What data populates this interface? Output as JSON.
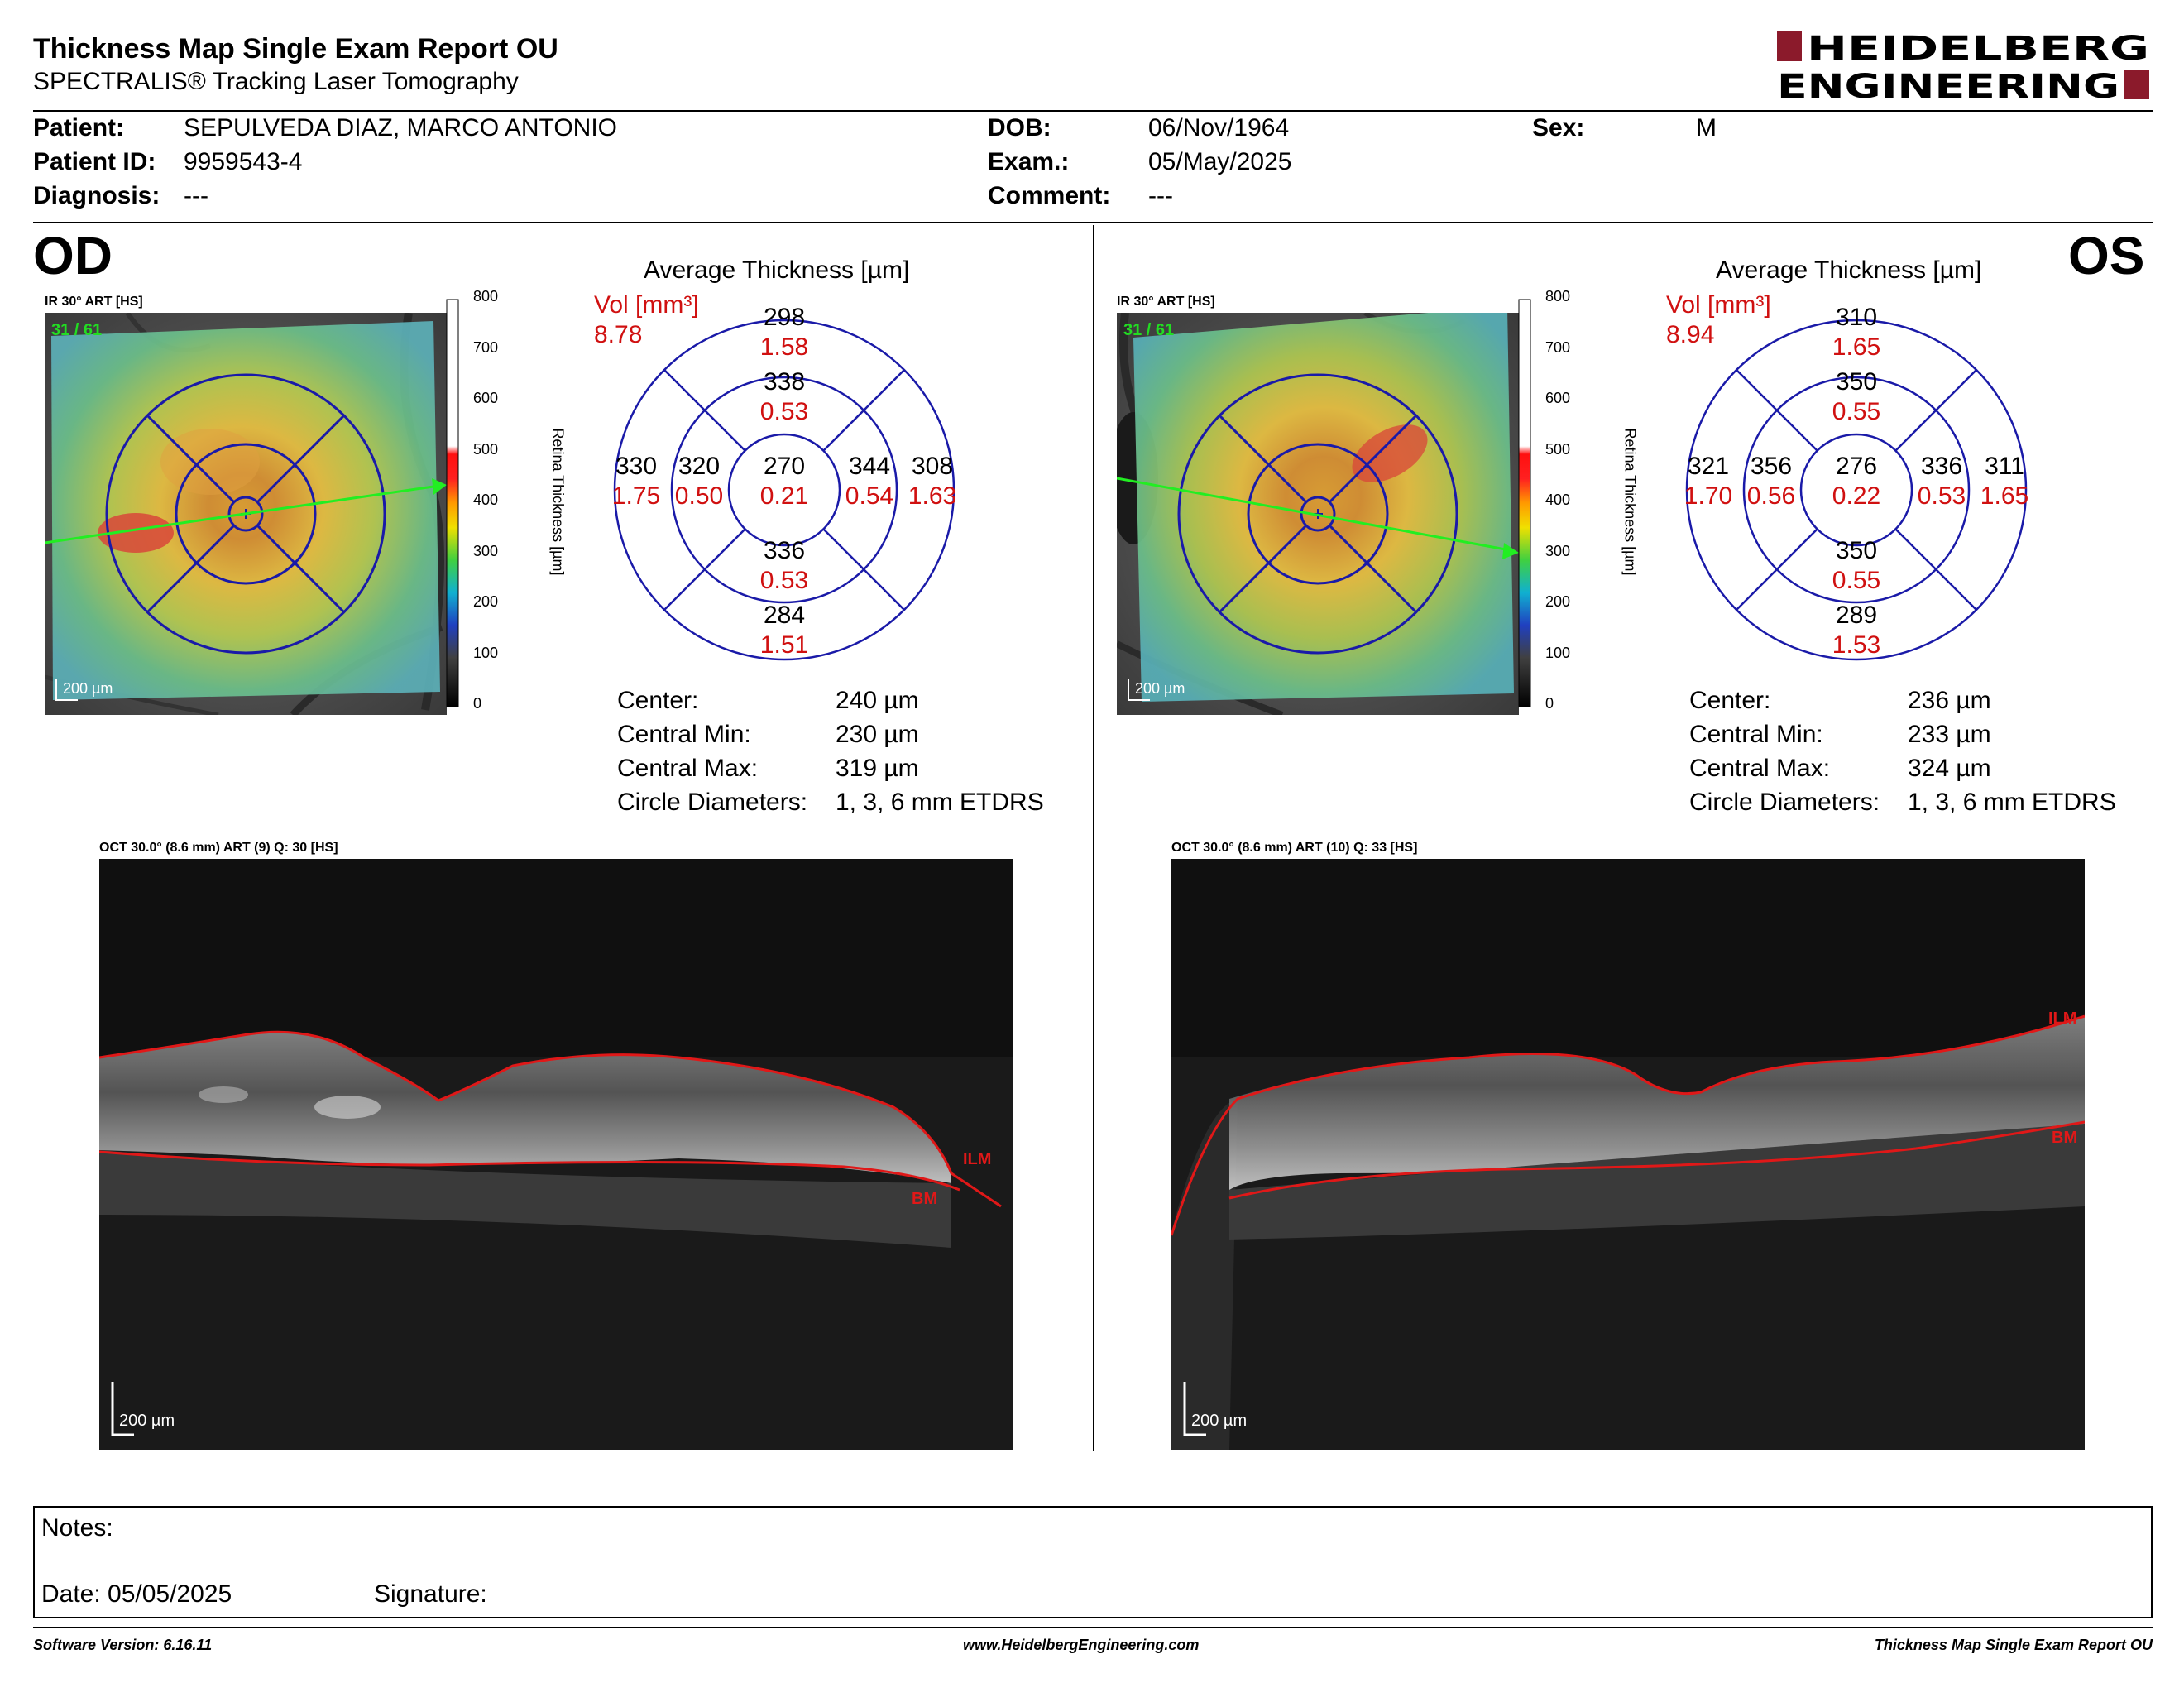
{
  "header": {
    "title": "Thickness Map Single Exam Report OU",
    "subtitle": "SPECTRALIS® Tracking Laser Tomography",
    "logo_line1": "HEIDELBERG",
    "logo_line2": "ENGINEERING"
  },
  "patient": {
    "patient_label": "Patient:",
    "patient_value": "SEPULVEDA DIAZ, MARCO ANTONIO",
    "id_label": "Patient ID:",
    "id_value": "9959543-4",
    "diagnosis_label": "Diagnosis:",
    "diagnosis_value": "---",
    "dob_label": "DOB:",
    "dob_value": "06/Nov/1964",
    "exam_label": "Exam.:",
    "exam_value": "05/May/2025",
    "comment_label": "Comment:",
    "comment_value": "---",
    "sex_label": "Sex:",
    "sex_value": "M"
  },
  "colors": {
    "sector_line": "#1a1aa8",
    "volume_text": "#d01010",
    "boundary_line": "#e01818",
    "tracking_green": "#22dd22"
  },
  "scale": {
    "ticks": [
      "800",
      "700",
      "600",
      "500",
      "400",
      "300",
      "200",
      "100",
      "0"
    ],
    "label": "Retina Thickness [µm]"
  },
  "od": {
    "eye": "OD",
    "ir_label": "IR 30° ART [HS]",
    "ir_frames": "31 / 61",
    "scale_bar": "200 µm",
    "avg_title": "Average Thickness [µm]",
    "vol_label": "Vol [mm³]",
    "vol_total": "8.78",
    "sectors": {
      "outer_sup": {
        "t": "298",
        "v": "1.58"
      },
      "inner_sup": {
        "t": "338",
        "v": "0.53"
      },
      "outer_left": {
        "t": "330",
        "v": "1.75"
      },
      "inner_left": {
        "t": "320",
        "v": "0.50"
      },
      "center": {
        "t": "270",
        "v": "0.21"
      },
      "inner_right": {
        "t": "344",
        "v": "0.54"
      },
      "outer_right": {
        "t": "308",
        "v": "1.63"
      },
      "inner_inf": {
        "t": "336",
        "v": "0.53"
      },
      "outer_inf": {
        "t": "284",
        "v": "1.51"
      }
    },
    "stats": [
      {
        "label": "Center:",
        "value": "240 µm"
      },
      {
        "label": "Central Min:",
        "value": "230 µm"
      },
      {
        "label": "Central Max:",
        "value": "319 µm"
      },
      {
        "label": "Circle Diameters:",
        "value": "1, 3, 6 mm ETDRS"
      }
    ],
    "oct_label": "OCT 30.0° (8.6 mm) ART (9) Q: 30 [HS]",
    "oct_scale": "200 µm",
    "ilm": "ILM",
    "bm": "BM"
  },
  "os": {
    "eye": "OS",
    "ir_label": "IR 30° ART [HS]",
    "ir_frames": "31 / 61",
    "scale_bar": "200 µm",
    "avg_title": "Average Thickness [µm]",
    "vol_label": "Vol [mm³]",
    "vol_total": "8.94",
    "sectors": {
      "outer_sup": {
        "t": "310",
        "v": "1.65"
      },
      "inner_sup": {
        "t": "350",
        "v": "0.55"
      },
      "outer_left": {
        "t": "321",
        "v": "1.70"
      },
      "inner_left": {
        "t": "356",
        "v": "0.56"
      },
      "center": {
        "t": "276",
        "v": "0.22"
      },
      "inner_right": {
        "t": "336",
        "v": "0.53"
      },
      "outer_right": {
        "t": "311",
        "v": "1.65"
      },
      "inner_inf": {
        "t": "350",
        "v": "0.55"
      },
      "outer_inf": {
        "t": "289",
        "v": "1.53"
      }
    },
    "stats": [
      {
        "label": "Center:",
        "value": "236 µm"
      },
      {
        "label": "Central Min:",
        "value": "233 µm"
      },
      {
        "label": "Central Max:",
        "value": "324 µm"
      },
      {
        "label": "Circle Diameters:",
        "value": "1, 3, 6 mm ETDRS"
      }
    ],
    "oct_label": "OCT 30.0° (8.6 mm) ART (10) Q: 33 [HS]",
    "oct_scale": "200 µm",
    "ilm": "ILM",
    "bm": "BM"
  },
  "notes": {
    "notes_label": "Notes:",
    "date_label": "Date: 05/05/2025",
    "signature_label": "Signature:"
  },
  "footer": {
    "software": "Software Version: 6.16.11",
    "website": "www.HeidelbergEngineering.com",
    "report": "Thickness Map Single Exam Report OU"
  }
}
